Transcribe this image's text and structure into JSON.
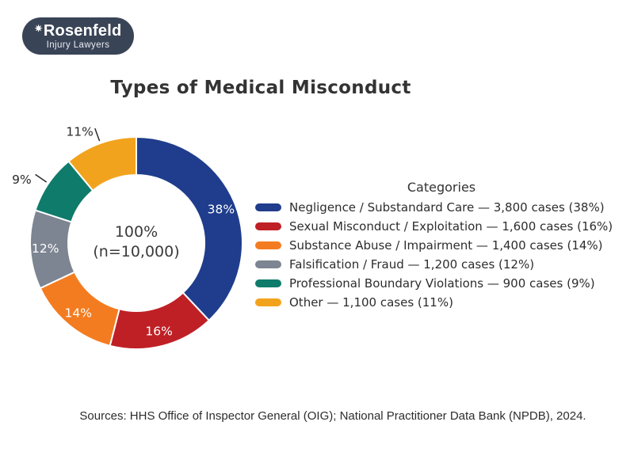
{
  "logo": {
    "brand": "Rosenfeld",
    "tagline": "Injury Lawyers",
    "star_icon": "✷",
    "bg_color": "#3a4457"
  },
  "chart_data": {
    "type": "pie",
    "subtype": "donut",
    "title": "Types of Medical Misconduct",
    "legend_title": "Categories",
    "legend_position": "right",
    "start_angle_deg": 90,
    "direction": "clockwise",
    "total": 10000,
    "center_label": {
      "line1": "100%",
      "line2": "(n=10,000)"
    },
    "categories": [
      "Negligence / Substandard Care",
      "Sexual Misconduct / Exploitation",
      "Substance Abuse / Impairment",
      "Falsification / Fraud",
      "Professional Boundary Violations",
      "Other"
    ],
    "values": [
      3800,
      1600,
      1400,
      1200,
      900,
      1100
    ],
    "percent_labels": [
      "38%",
      "16%",
      "14%",
      "12%",
      "9%",
      "11%"
    ],
    "label_placement": [
      "inside",
      "inside",
      "inside",
      "inside",
      "outside",
      "outside"
    ],
    "colors": [
      "#1f3d8c",
      "#bf2026",
      "#f47c20",
      "#7c8591",
      "#0f7b6b",
      "#f2a31d"
    ],
    "legend_entries": [
      "Negligence / Substandard Care — 3,800 cases (38%)",
      "Sexual Misconduct / Exploitation — 1,600 cases (16%)",
      "Substance Abuse / Impairment — 1,400 cases (14%)",
      "Falsification / Fraud — 1,200 cases (12%)",
      "Professional Boundary Violations — 900 cases (9%)",
      "Other — 1,100 cases (11%)"
    ]
  },
  "source_note": "Sources: HHS Office of Inspector General (OIG); National Practitioner Data Bank (NPDB), 2024."
}
